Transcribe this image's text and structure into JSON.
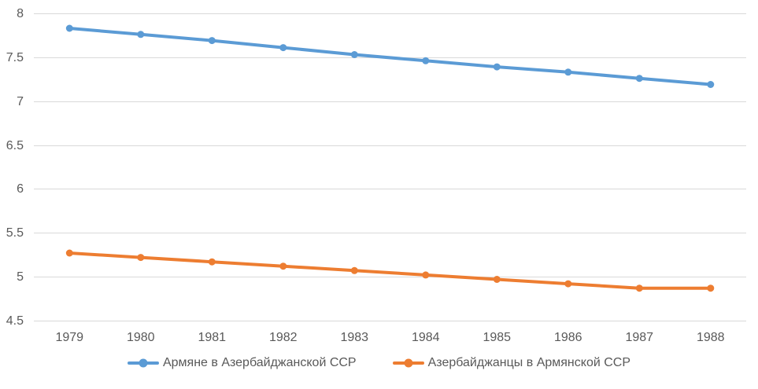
{
  "chart_data": {
    "type": "line",
    "title": "",
    "xlabel": "",
    "ylabel": "",
    "categories": [
      "1979",
      "1980",
      "1981",
      "1982",
      "1983",
      "1984",
      "1985",
      "1986",
      "1987",
      "1988"
    ],
    "series": [
      {
        "name": "Армяне в Азербайджанской ССР",
        "color": "#5B9BD5",
        "values": [
          7.83,
          7.76,
          7.69,
          7.61,
          7.53,
          7.46,
          7.39,
          7.33,
          7.26,
          7.19
        ]
      },
      {
        "name": "Азербайджанцы в Армянской ССР",
        "color": "#ED7D31",
        "values": [
          5.27,
          5.22,
          5.17,
          5.12,
          5.07,
          5.02,
          4.97,
          4.92,
          4.87,
          4.87
        ]
      }
    ],
    "ylim": [
      4.5,
      8
    ],
    "ytick_labels": [
      "8",
      "7.5",
      "7",
      "6.5",
      "6",
      "5.5",
      "5",
      "4.5"
    ],
    "grid": true,
    "legend_position": "bottom",
    "colors": {
      "grid": "#D9D9D9",
      "axis_text": "#595959",
      "background": "#FFFFFF"
    },
    "marker": "circle",
    "line_width": 4
  }
}
